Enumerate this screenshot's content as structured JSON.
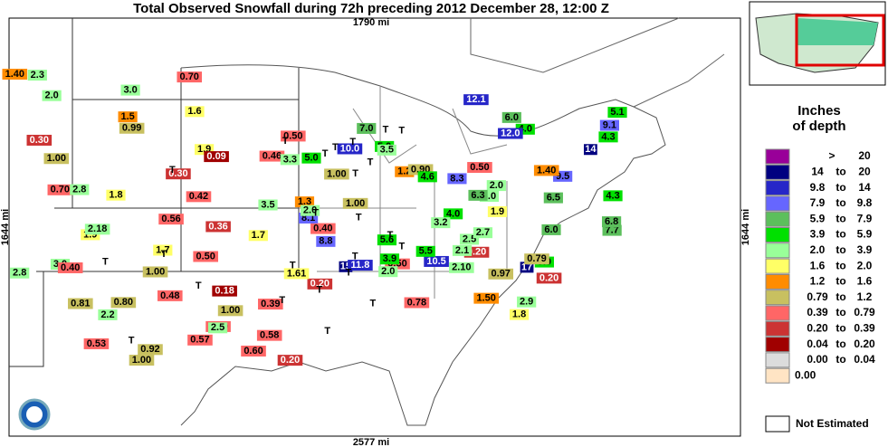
{
  "title": "Total Observed Snowfall during 72h preceding 2012 December 28, 12:00 Z",
  "scale": {
    "top": "1790 mi",
    "bottom": "2577 mi",
    "left": "1644 mi",
    "right": "1644 mi"
  },
  "legend": {
    "title": [
      "Inches",
      "of depth"
    ],
    "rows": [
      {
        "text": [
          ">",
          "20"
        ],
        "color": "#990099"
      },
      {
        "text": [
          "14",
          "to",
          "20"
        ],
        "color": "#000080"
      },
      {
        "text": [
          "9.8",
          "to",
          "14"
        ],
        "color": "#2626c8"
      },
      {
        "text": [
          "7.9",
          "to",
          "9.8"
        ],
        "color": "#6666ff"
      },
      {
        "text": [
          "5.9",
          "to",
          "7.9"
        ],
        "color": "#5cbf5c"
      },
      {
        "text": [
          "3.9",
          "to",
          "5.9"
        ],
        "color": "#00e000"
      },
      {
        "text": [
          "2.0",
          "to",
          "3.9"
        ],
        "color": "#99ff99"
      },
      {
        "text": [
          "1.6",
          "to",
          "2.0"
        ],
        "color": "#ffff66"
      },
      {
        "text": [
          "1.2",
          "to",
          "1.6"
        ],
        "color": "#ff8c00"
      },
      {
        "text": [
          "0.79",
          "to",
          "1.2"
        ],
        "color": "#c8c060"
      },
      {
        "text": [
          "0.39",
          "to",
          "0.79"
        ],
        "color": "#ff6666"
      },
      {
        "text": [
          "0.20",
          "to",
          "0.39"
        ],
        "color": "#cc3333"
      },
      {
        "text": [
          "0.04",
          "to",
          "0.20"
        ],
        "color": "#a00000"
      },
      {
        "text": [
          "0.00",
          "to",
          "0.04"
        ],
        "color": "#dcdcdc"
      },
      {
        "text": [
          "0.00"
        ],
        "color": "#ffe4c4"
      }
    ],
    "not_estimated": "Not Estimated"
  },
  "stations": [
    "0.46",
    "0.36",
    "0.18",
    "0.50",
    "1.00",
    "6.0",
    "0.78",
    "0.40",
    "0.20",
    "0.58",
    "2.2",
    "1.00",
    "0.53",
    "0.50",
    "1.9",
    "0.99",
    "1.3",
    "0.57",
    "0.70",
    "1.8",
    "1.7",
    "3.5",
    "2.1",
    "1.00",
    "0.50",
    "0.30",
    "0.80",
    "0.20",
    "1.5",
    "0.50",
    "4.0",
    "6.0",
    "7.7",
    "2.0",
    "5.0",
    "8.1",
    "9.5",
    "3.9",
    "10.5",
    "12.1",
    "17",
    "5.1",
    "1.9",
    "5.0",
    "8.8",
    "6.5",
    "15",
    "5.0",
    "6.8",
    "1.9",
    "2.5",
    "2.8",
    "4.3",
    "3.0",
    "1.2",
    "0.20",
    "2.9",
    "1.6",
    "0.48",
    "0.90",
    "3.0",
    "0.56",
    "2.0",
    "2.18",
    "0.09",
    "0.42",
    "1.00",
    "0.79",
    "1.61",
    "1.50",
    "2.0",
    "2.3",
    "1.40",
    "0.40",
    "1.00",
    "4.0",
    "3.0",
    "5.6",
    "11.8",
    "10.0",
    "7.0",
    "3.2",
    "2.0",
    "1.40",
    "0.30",
    "0.97",
    "0.60",
    "2.5",
    "4.6",
    "6.3",
    "2.10",
    "1.8",
    "0.92",
    "3.5",
    "5.5",
    "0.20",
    "0.81",
    "0.39",
    "2.7",
    "1.7",
    "4.3",
    "8.3",
    "12.0",
    "14",
    "9.1",
    "3.3",
    "2.8",
    "1.00",
    "0.50",
    "0.70",
    "T",
    "T",
    "T",
    "T",
    "T",
    "T",
    "T",
    "T",
    "T",
    "T",
    "T",
    "T",
    "T",
    "T",
    "T",
    "T",
    "T",
    "T",
    "T",
    "T",
    "T",
    "T",
    "T",
    "T"
  ]
}
